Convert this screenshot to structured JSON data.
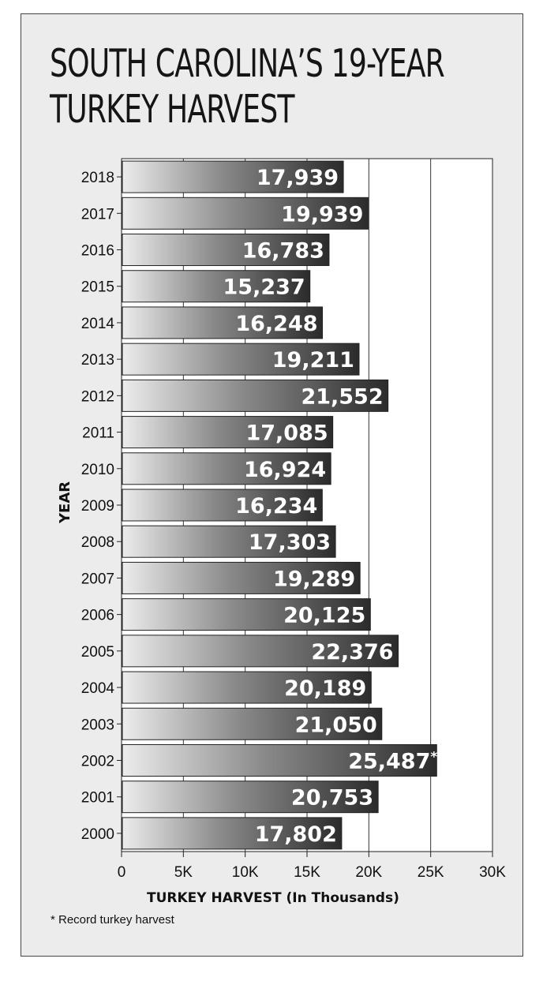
{
  "chart_data": {
    "type": "bar",
    "orientation": "horizontal",
    "title": "SOUTH CAROLINA’S 19-YEAR TURKEY HARVEST",
    "title_lines": [
      "SOUTH CAROLINA’S 19-YEAR",
      "TURKEY HARVEST"
    ],
    "xlabel": "TURKEY HARVEST (In Thousands)",
    "ylabel": "YEAR",
    "categories": [
      "2018",
      "2017",
      "2016",
      "2015",
      "2014",
      "2013",
      "2012",
      "2011",
      "2010",
      "2009",
      "2008",
      "2007",
      "2006",
      "2005",
      "2004",
      "2003",
      "2002",
      "2001",
      "2000"
    ],
    "values": [
      17939,
      19939,
      16783,
      15237,
      16248,
      19211,
      21552,
      17085,
      16924,
      16234,
      17303,
      19289,
      20125,
      22376,
      20189,
      21050,
      25487,
      20753,
      17802
    ],
    "value_labels": [
      "17,939",
      "19,939",
      "16,783",
      "15,237",
      "16,248",
      "19,211",
      "21,552",
      "17,085",
      "16,924",
      "16,234",
      "17,303",
      "19,289",
      "20,125",
      "22,376",
      "20,189",
      "21,050",
      "25,487*",
      "20,753",
      "17,802"
    ],
    "xlim": [
      0,
      30000
    ],
    "xticks": [
      0,
      5000,
      10000,
      15000,
      20000,
      25000,
      30000
    ],
    "xtick_labels": [
      "0",
      "5K",
      "10K",
      "15K",
      "20K",
      "25K",
      "30K"
    ],
    "grid": "vertical",
    "footnote": "* Record turkey harvest",
    "colors": {
      "bar_light": "#e8e8e8",
      "bar_dark": "#2e2e2e",
      "plot_bg": "#ffffff",
      "panel_bg": "#ececec"
    }
  }
}
